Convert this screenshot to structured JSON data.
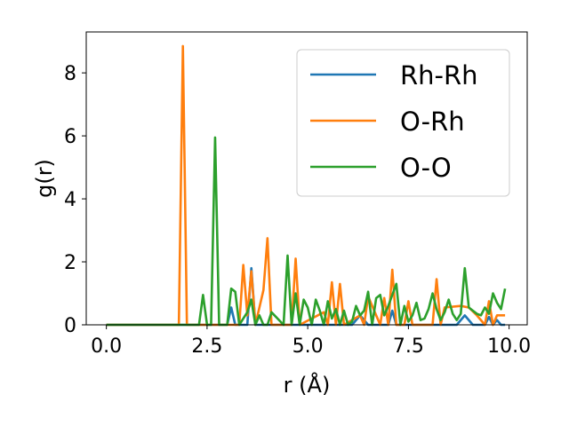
{
  "chart_data": {
    "type": "line",
    "title": "",
    "xlabel": "r (Å)",
    "ylabel": "g(r)",
    "xlim": [
      -0.5,
      10.45
    ],
    "ylim": [
      0,
      9.3
    ],
    "xticks": [
      0.0,
      2.5,
      5.0,
      7.5,
      10.0
    ],
    "xtick_labels": [
      "0.0",
      "2.5",
      "5.0",
      "7.5",
      "10.0"
    ],
    "yticks": [
      0,
      2,
      4,
      6,
      8
    ],
    "ytick_labels": [
      "0",
      "2",
      "4",
      "6",
      "8"
    ],
    "grid": false,
    "legend_position": "upper-right",
    "series": [
      {
        "name": "Rh-Rh",
        "color": "#1f77b4",
        "x": [
          0.0,
          3.0,
          3.1,
          3.2,
          3.5,
          3.6,
          3.7,
          6.1,
          6.3,
          6.5,
          7.0,
          7.1,
          7.2,
          8.7,
          8.9,
          9.1,
          9.4,
          9.5,
          9.6,
          9.7,
          9.8,
          9.9
        ],
        "y": [
          0,
          0,
          0.55,
          0,
          0,
          1.8,
          0,
          0,
          0.3,
          0,
          0,
          0.45,
          0,
          0,
          0.3,
          0,
          0,
          0.25,
          0,
          0.15,
          0,
          0
        ]
      },
      {
        "name": "O-Rh",
        "color": "#ff7f0e",
        "x": [
          0.0,
          1.8,
          1.9,
          2.0,
          3.3,
          3.4,
          3.5,
          3.6,
          3.7,
          3.9,
          4.0,
          4.1,
          4.6,
          4.7,
          4.8,
          5.4,
          5.5,
          5.6,
          5.7,
          5.8,
          5.9,
          6.3,
          6.4,
          6.5,
          6.8,
          6.9,
          7.0,
          7.1,
          7.2,
          7.4,
          7.5,
          7.6,
          8.1,
          8.2,
          8.3,
          8.4,
          8.8,
          9.0,
          9.2,
          9.4,
          9.5,
          9.6,
          9.7,
          9.9
        ],
        "y": [
          0,
          0,
          8.85,
          0,
          0,
          1.9,
          0.3,
          1.7,
          0,
          1.1,
          2.75,
          0,
          0,
          2.1,
          0,
          0.4,
          0,
          1.35,
          0,
          1.3,
          0,
          0.3,
          0,
          0.9,
          0,
          0.85,
          0,
          1.75,
          0,
          0,
          0.75,
          0,
          0,
          1.45,
          0,
          0.55,
          0.6,
          0.55,
          0.3,
          0,
          0.75,
          0,
          0.3,
          0.3
        ]
      },
      {
        "name": "O-O",
        "color": "#2ca02c",
        "x": [
          0.0,
          2.3,
          2.4,
          2.5,
          2.6,
          2.7,
          2.8,
          3.0,
          3.1,
          3.2,
          3.3,
          3.5,
          3.6,
          3.7,
          3.8,
          3.9,
          4.0,
          4.1,
          4.4,
          4.5,
          4.6,
          4.7,
          4.8,
          4.9,
          5.0,
          5.1,
          5.2,
          5.3,
          5.4,
          5.5,
          5.6,
          5.7,
          5.8,
          5.9,
          6.0,
          6.1,
          6.2,
          6.3,
          6.4,
          6.5,
          6.6,
          6.7,
          6.8,
          6.9,
          7.0,
          7.1,
          7.2,
          7.3,
          7.4,
          7.5,
          7.6,
          7.7,
          7.8,
          7.9,
          8.0,
          8.1,
          8.2,
          8.3,
          8.4,
          8.5,
          8.6,
          8.7,
          8.8,
          8.9,
          9.0,
          9.1,
          9.2,
          9.3,
          9.4,
          9.5,
          9.6,
          9.7,
          9.8,
          9.9
        ],
        "y": [
          0,
          0,
          0.95,
          0,
          0,
          5.95,
          0,
          0,
          1.15,
          1.05,
          0,
          0.4,
          0.8,
          0,
          0.3,
          0,
          0,
          0.4,
          0,
          2.2,
          0,
          1.0,
          0,
          0.8,
          0.55,
          0,
          0.8,
          0.45,
          0,
          0.75,
          0.2,
          0.5,
          0,
          0.45,
          0,
          0.1,
          0.6,
          0.3,
          0.45,
          1.05,
          0,
          0.85,
          0.95,
          0.3,
          0.6,
          0.95,
          1.3,
          0,
          0.6,
          0.1,
          0.3,
          0.7,
          0.15,
          0.2,
          0.5,
          1.0,
          0.5,
          0.15,
          0.4,
          0.8,
          0.35,
          0.15,
          0.35,
          1.8,
          0.55,
          0.45,
          0.35,
          0.3,
          0.55,
          0.35,
          1.0,
          0.7,
          0.5,
          1.15
        ]
      }
    ]
  }
}
